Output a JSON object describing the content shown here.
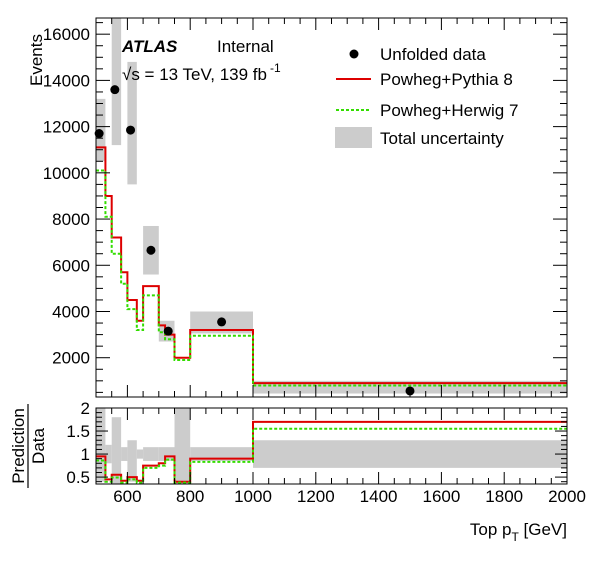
{
  "chart_data": {
    "type": "histogram",
    "experiment": "ATLAS",
    "status": "Internal",
    "energy_label": "√s = 13 TeV, 139 fb",
    "energy_sup": "-1",
    "xlabel": "Top p",
    "xlabel_sub": "T",
    "xlabel_unit": " [GeV]",
    "xlim": [
      500,
      2000
    ],
    "x_ticks": [
      600,
      800,
      1000,
      1200,
      1400,
      1600,
      1800,
      2000
    ],
    "bin_edges": [
      500,
      530,
      550,
      580,
      600,
      630,
      650,
      700,
      720,
      750,
      800,
      1000,
      2000
    ],
    "main": {
      "ylabel": "Events",
      "ylim": [
        300,
        16700
      ],
      "y_ticks": [
        2000,
        4000,
        6000,
        8000,
        10000,
        12000,
        14000,
        16000
      ],
      "data": {
        "name": "Unfolded data",
        "points": [
          {
            "x": 510,
            "y": 11700,
            "unc_low": 10500,
            "unc_high": 13200
          },
          {
            "x": 560,
            "y": 13600,
            "unc_low": 11200,
            "unc_high": 16700
          },
          {
            "x": 610,
            "y": 11850,
            "unc_low": 9500,
            "unc_high": 14800
          },
          {
            "x": 675,
            "y": 6650,
            "unc_low": 5600,
            "unc_high": 7700
          },
          {
            "x": 730,
            "y": 3150,
            "unc_low": 2700,
            "unc_high": 3600
          },
          {
            "x": 900,
            "y": 3550,
            "unc_low": 3050,
            "unc_high": 4000
          },
          {
            "x": 1500,
            "y": 560,
            "unc_low": 450,
            "unc_high": 1000
          }
        ]
      },
      "series": [
        {
          "name": "Powheg+Pythia 8",
          "style": "solid",
          "color": "#dd0000",
          "values": [
            11100,
            9000,
            7200,
            5700,
            4500,
            3600,
            5100,
            3400,
            3000,
            2000,
            3200,
            900
          ]
        },
        {
          "name": "Powheg+Herwig 7",
          "style": "dashed",
          "color": "#33dd00",
          "values": [
            10100,
            8100,
            6500,
            5200,
            4100,
            3200,
            4700,
            3100,
            2800,
            1900,
            2950,
            800
          ]
        }
      ],
      "uncertainty_name": "Total uncertainty"
    },
    "ratio": {
      "ylabel_num": "Prediction",
      "ylabel_den": "Data",
      "ylim": [
        0.35,
        2.0
      ],
      "y_ticks": [
        0.5,
        1,
        1.5,
        2
      ],
      "y_tick_labels": [
        "0.5",
        "1",
        "1.5",
        "2"
      ],
      "uncertainty_bands": [
        {
          "x0": 500,
          "x1": 530,
          "low": 0.4,
          "high": 2.0
        },
        {
          "x0": 530,
          "x1": 550,
          "low": 0.8,
          "high": 1.2
        },
        {
          "x0": 550,
          "x1": 580,
          "low": 0.35,
          "high": 1.8
        },
        {
          "x0": 580,
          "x1": 600,
          "low": 0.85,
          "high": 1.15
        },
        {
          "x0": 600,
          "x1": 630,
          "low": 0.4,
          "high": 1.3
        },
        {
          "x0": 630,
          "x1": 650,
          "low": 0.9,
          "high": 1.1
        },
        {
          "x0": 650,
          "x1": 700,
          "low": 0.85,
          "high": 1.15
        },
        {
          "x0": 700,
          "x1": 750,
          "low": 0.85,
          "high": 1.15
        },
        {
          "x0": 750,
          "x1": 800,
          "low": 0.35,
          "high": 2.0
        },
        {
          "x0": 800,
          "x1": 1000,
          "low": 0.85,
          "high": 1.15
        },
        {
          "x0": 1000,
          "x1": 2000,
          "low": 0.7,
          "high": 1.3
        }
      ],
      "series": [
        {
          "name": "Powheg+Pythia 8",
          "values": [
            0.95,
            0.45,
            0.55,
            0.42,
            0.5,
            0.42,
            0.75,
            0.8,
            0.95,
            0.4,
            0.9,
            1.7
          ]
        },
        {
          "name": "Powheg+Herwig 7",
          "values": [
            0.86,
            0.4,
            0.49,
            0.38,
            0.45,
            0.38,
            0.7,
            0.75,
            0.88,
            0.38,
            0.83,
            1.55
          ]
        }
      ]
    }
  }
}
